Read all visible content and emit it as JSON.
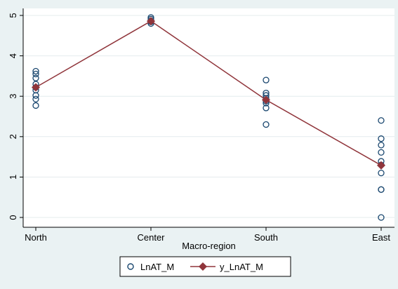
{
  "chart_data": {
    "type": "scatter",
    "categories": [
      "North",
      "Center",
      "South",
      "East"
    ],
    "xlabel": "Macro-region",
    "ylabel": "",
    "ylim": [
      0,
      5
    ],
    "yticks": [
      "0",
      "1",
      "2",
      "3",
      "4",
      "5"
    ],
    "grid": "horizontal",
    "legend_position": "bottom",
    "series": [
      {
        "name": "LnAT_M",
        "marker": "hollow-circle",
        "color": "#1a476f",
        "points": [
          {
            "x": "North",
            "y": 3.62
          },
          {
            "x": "North",
            "y": 3.55
          },
          {
            "x": "North",
            "y": 3.45
          },
          {
            "x": "North",
            "y": 3.3
          },
          {
            "x": "North",
            "y": 3.22
          },
          {
            "x": "North",
            "y": 3.15
          },
          {
            "x": "North",
            "y": 3.02
          },
          {
            "x": "North",
            "y": 2.93
          },
          {
            "x": "North",
            "y": 2.77
          },
          {
            "x": "Center",
            "y": 4.95
          },
          {
            "x": "Center",
            "y": 4.91
          },
          {
            "x": "Center",
            "y": 4.87
          },
          {
            "x": "Center",
            "y": 4.84
          },
          {
            "x": "Center",
            "y": 4.8
          },
          {
            "x": "South",
            "y": 3.4
          },
          {
            "x": "South",
            "y": 3.08
          },
          {
            "x": "South",
            "y": 3.02
          },
          {
            "x": "South",
            "y": 2.95
          },
          {
            "x": "South",
            "y": 2.88
          },
          {
            "x": "South",
            "y": 2.83
          },
          {
            "x": "South",
            "y": 2.71
          },
          {
            "x": "South",
            "y": 2.3
          },
          {
            "x": "East",
            "y": 2.4
          },
          {
            "x": "East",
            "y": 1.95
          },
          {
            "x": "East",
            "y": 1.79
          },
          {
            "x": "East",
            "y": 1.61
          },
          {
            "x": "East",
            "y": 1.39
          },
          {
            "x": "East",
            "y": 1.3
          },
          {
            "x": "East",
            "y": 1.1
          },
          {
            "x": "East",
            "y": 0.69
          },
          {
            "x": "East",
            "y": 0.69
          },
          {
            "x": "East",
            "y": 0.0
          }
        ]
      },
      {
        "name": "y_LnAT_M",
        "marker": "diamond",
        "line": true,
        "color": "#90353b",
        "points": [
          {
            "x": "North",
            "y": 3.22
          },
          {
            "x": "Center",
            "y": 4.86
          },
          {
            "x": "South",
            "y": 2.91
          },
          {
            "x": "East",
            "y": 1.29
          }
        ]
      }
    ]
  }
}
